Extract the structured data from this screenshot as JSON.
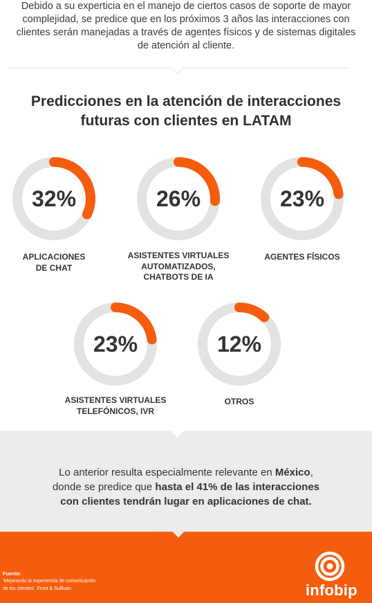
{
  "intro": {
    "text": "Debido a su experticia en el manejo de ciertos casos de soporte de mayor complejidad, se predice que en los próximos 3 años las interacciones con clientes serán manejadas a través de agentes físicos y de sistemas digitales de atención al cliente."
  },
  "title": {
    "line1": "Predicciones en la atención de interacciones",
    "line2": "futuras con clientes en LATAM"
  },
  "stats": [
    {
      "value": "32%",
      "fraction": 0.32,
      "label_lines": [
        "APLICACIONES",
        "DE CHAT"
      ]
    },
    {
      "value": "26%",
      "fraction": 0.26,
      "label_lines": [
        "ASISTENTES VIRTUALES",
        "AUTOMATIZADOS,",
        "CHATBOTS DE IA"
      ]
    },
    {
      "value": "23%",
      "fraction": 0.23,
      "label_lines": [
        "AGENTES FÍSICOS"
      ]
    },
    {
      "value": "23%",
      "fraction": 0.23,
      "label_lines": [
        "ASISTENTES VIRTUALES",
        "TELEFÓNICOS, IVR"
      ]
    },
    {
      "value": "12%",
      "fraction": 0.12,
      "label_lines": [
        "OTROS"
      ]
    }
  ],
  "colors": {
    "accent": "#f55d0e",
    "ring_track": "#e3e3e3",
    "gray_band": "#ececec"
  },
  "conclusion": {
    "p1": "Lo anterior resulta especialmente relevante en ",
    "country": "México",
    "p2": ",",
    "p3": "donde se predice que ",
    "highlight1": "hasta el 41% de las interacciones",
    "highlight2": "con clientes tendrán lugar en aplicaciones de chat."
  },
  "footer": {
    "source_title": "Fuente:",
    "source_line1": "'Mejorando la experiencia de comunicación",
    "source_line2": "de los clientes', Frost & Sullivan.",
    "brand": "infobip",
    "logo_icon": "infobip-logo-icon"
  }
}
